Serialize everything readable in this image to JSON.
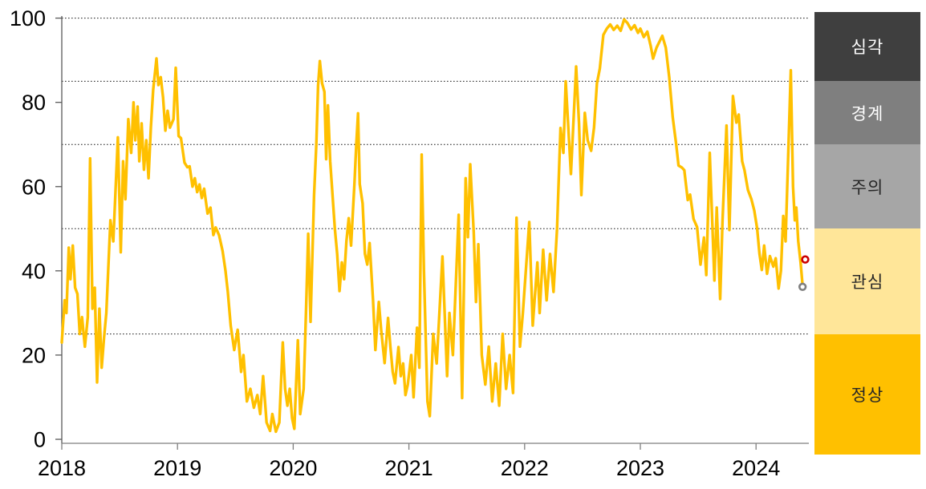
{
  "chart_data": {
    "type": "line",
    "title": "",
    "grid": "horizontal-dotted",
    "gridline_values": [
      100,
      85,
      70,
      50,
      25
    ],
    "x_axis": {
      "ticks": [
        "2018",
        "2019",
        "2020",
        "2021",
        "2022",
        "2023",
        "2024"
      ],
      "tick_values": [
        2018,
        2019,
        2020,
        2021,
        2022,
        2023,
        2024
      ],
      "range": [
        2018.0,
        2024.46
      ]
    },
    "y_axis": {
      "ticks": [
        "0",
        "20",
        "40",
        "60",
        "80",
        "100"
      ],
      "tick_values": [
        0,
        20,
        40,
        60,
        80,
        100
      ],
      "range": [
        0,
        100
      ]
    },
    "series": [
      {
        "color": "#FFC000",
        "points": [
          [
            2018.0,
            23
          ],
          [
            2018.01,
            27
          ],
          [
            2018.025,
            33
          ],
          [
            2018.04,
            30
          ],
          [
            2018.06,
            45.5
          ],
          [
            2018.075,
            38
          ],
          [
            2018.095,
            46
          ],
          [
            2018.115,
            36
          ],
          [
            2018.135,
            34.5
          ],
          [
            2018.155,
            25
          ],
          [
            2018.175,
            29
          ],
          [
            2018.2,
            22
          ],
          [
            2018.225,
            29
          ],
          [
            2018.245,
            66.7
          ],
          [
            2018.265,
            31
          ],
          [
            2018.285,
            36
          ],
          [
            2018.305,
            13.5
          ],
          [
            2018.325,
            31
          ],
          [
            2018.345,
            17
          ],
          [
            2018.365,
            24
          ],
          [
            2018.385,
            30
          ],
          [
            2018.42,
            52
          ],
          [
            2018.445,
            47
          ],
          [
            2018.485,
            71.7
          ],
          [
            2018.51,
            44.4
          ],
          [
            2018.53,
            66
          ],
          [
            2018.55,
            57
          ],
          [
            2018.575,
            76
          ],
          [
            2018.6,
            68
          ],
          [
            2018.62,
            80
          ],
          [
            2018.635,
            71
          ],
          [
            2018.655,
            79
          ],
          [
            2018.67,
            66
          ],
          [
            2018.69,
            75
          ],
          [
            2018.71,
            64
          ],
          [
            2018.73,
            71
          ],
          [
            2018.75,
            62
          ],
          [
            2018.77,
            74
          ],
          [
            2018.79,
            83
          ],
          [
            2018.818,
            90.4
          ],
          [
            2018.835,
            84.1
          ],
          [
            2018.855,
            86
          ],
          [
            2018.875,
            81.2
          ],
          [
            2018.895,
            73.3
          ],
          [
            2018.915,
            78
          ],
          [
            2018.935,
            74
          ],
          [
            2018.965,
            76
          ],
          [
            2018.985,
            88.2
          ],
          [
            2019.01,
            72
          ],
          [
            2019.03,
            71.5
          ],
          [
            2019.06,
            65.7
          ],
          [
            2019.085,
            64.6
          ],
          [
            2019.105,
            64.8
          ],
          [
            2019.13,
            60
          ],
          [
            2019.15,
            62
          ],
          [
            2019.17,
            58.7
          ],
          [
            2019.19,
            60.5
          ],
          [
            2019.21,
            57.3
          ],
          [
            2019.23,
            59.5
          ],
          [
            2019.26,
            53.6
          ],
          [
            2019.285,
            55
          ],
          [
            2019.31,
            48.5
          ],
          [
            2019.33,
            50.3
          ],
          [
            2019.36,
            48.4
          ],
          [
            2019.39,
            44.7
          ],
          [
            2019.415,
            40
          ],
          [
            2019.435,
            35
          ],
          [
            2019.46,
            27
          ],
          [
            2019.49,
            21.2
          ],
          [
            2019.52,
            26
          ],
          [
            2019.55,
            16
          ],
          [
            2019.57,
            20
          ],
          [
            2019.6,
            9
          ],
          [
            2019.63,
            12
          ],
          [
            2019.66,
            7.5
          ],
          [
            2019.69,
            10.5
          ],
          [
            2019.715,
            6
          ],
          [
            2019.74,
            15
          ],
          [
            2019.77,
            4
          ],
          [
            2019.8,
            2
          ],
          [
            2019.82,
            6
          ],
          [
            2019.85,
            1.8
          ],
          [
            2019.88,
            4
          ],
          [
            2019.91,
            23
          ],
          [
            2019.93,
            12
          ],
          [
            2019.95,
            8
          ],
          [
            2019.97,
            12
          ],
          [
            2019.99,
            5
          ],
          [
            2020.01,
            2.5
          ],
          [
            2020.04,
            23.5
          ],
          [
            2020.06,
            6
          ],
          [
            2020.09,
            12
          ],
          [
            2020.11,
            30
          ],
          [
            2020.13,
            48.8
          ],
          [
            2020.15,
            27.9
          ],
          [
            2020.18,
            58
          ],
          [
            2020.2,
            70
          ],
          [
            2020.215,
            84
          ],
          [
            2020.23,
            89.8
          ],
          [
            2020.25,
            84.5
          ],
          [
            2020.27,
            82.5
          ],
          [
            2020.285,
            66.5
          ],
          [
            2020.3,
            79.3
          ],
          [
            2020.32,
            66
          ],
          [
            2020.34,
            58
          ],
          [
            2020.36,
            50
          ],
          [
            2020.38,
            44
          ],
          [
            2020.4,
            35.2
          ],
          [
            2020.42,
            42
          ],
          [
            2020.44,
            38
          ],
          [
            2020.46,
            47
          ],
          [
            2020.48,
            52.5
          ],
          [
            2020.5,
            46
          ],
          [
            2020.53,
            61
          ],
          [
            2020.545,
            70
          ],
          [
            2020.56,
            77.4
          ],
          [
            2020.575,
            60.6
          ],
          [
            2020.6,
            56
          ],
          [
            2020.62,
            44
          ],
          [
            2020.64,
            41.5
          ],
          [
            2020.66,
            46.6
          ],
          [
            2020.69,
            33
          ],
          [
            2020.71,
            21.2
          ],
          [
            2020.74,
            32.6
          ],
          [
            2020.76,
            26
          ],
          [
            2020.79,
            18.1
          ],
          [
            2020.82,
            28.8
          ],
          [
            2020.84,
            22
          ],
          [
            2020.86,
            16
          ],
          [
            2020.88,
            13.3
          ],
          [
            2020.91,
            21.9
          ],
          [
            2020.93,
            15
          ],
          [
            2020.95,
            18
          ],
          [
            2020.97,
            10.5
          ],
          [
            2020.99,
            13
          ],
          [
            2021.02,
            20
          ],
          [
            2021.04,
            10
          ],
          [
            2021.07,
            26.5
          ],
          [
            2021.09,
            17
          ],
          [
            2021.11,
            67.6
          ],
          [
            2021.13,
            40
          ],
          [
            2021.16,
            9
          ],
          [
            2021.18,
            5.5
          ],
          [
            2021.21,
            25
          ],
          [
            2021.24,
            18
          ],
          [
            2021.29,
            43.4
          ],
          [
            2021.33,
            15
          ],
          [
            2021.35,
            30
          ],
          [
            2021.38,
            20
          ],
          [
            2021.43,
            53.3
          ],
          [
            2021.46,
            9.8
          ],
          [
            2021.49,
            62
          ],
          [
            2021.51,
            48
          ],
          [
            2021.53,
            65.3
          ],
          [
            2021.56,
            49
          ],
          [
            2021.58,
            32.6
          ],
          [
            2021.6,
            46.3
          ],
          [
            2021.63,
            20
          ],
          [
            2021.66,
            13
          ],
          [
            2021.69,
            22
          ],
          [
            2021.72,
            9
          ],
          [
            2021.75,
            18
          ],
          [
            2021.78,
            8
          ],
          [
            2021.81,
            25
          ],
          [
            2021.84,
            12
          ],
          [
            2021.87,
            20
          ],
          [
            2021.9,
            11
          ],
          [
            2021.93,
            52.6
          ],
          [
            2021.96,
            22
          ],
          [
            2021.985,
            30
          ],
          [
            2022.04,
            51.6
          ],
          [
            2022.07,
            27
          ],
          [
            2022.11,
            42
          ],
          [
            2022.13,
            30
          ],
          [
            2022.16,
            45
          ],
          [
            2022.19,
            33
          ],
          [
            2022.22,
            44
          ],
          [
            2022.25,
            35
          ],
          [
            2022.28,
            50
          ],
          [
            2022.31,
            73.9
          ],
          [
            2022.335,
            68
          ],
          [
            2022.355,
            85
          ],
          [
            2022.4,
            63
          ],
          [
            2022.445,
            88.5
          ],
          [
            2022.47,
            75
          ],
          [
            2022.49,
            58
          ],
          [
            2022.52,
            77.5
          ],
          [
            2022.545,
            71
          ],
          [
            2022.575,
            68.5
          ],
          [
            2022.6,
            74
          ],
          [
            2022.625,
            84.5
          ],
          [
            2022.65,
            88
          ],
          [
            2022.68,
            96
          ],
          [
            2022.71,
            97.5
          ],
          [
            2022.74,
            98.5
          ],
          [
            2022.77,
            97.2
          ],
          [
            2022.8,
            98.2
          ],
          [
            2022.83,
            97
          ],
          [
            2022.86,
            99.7
          ],
          [
            2022.89,
            98.8
          ],
          [
            2022.92,
            97.3
          ],
          [
            2022.95,
            98.3
          ],
          [
            2022.98,
            96.5
          ],
          [
            2023.0,
            97.5
          ],
          [
            2023.03,
            95.5
          ],
          [
            2023.06,
            96.8
          ],
          [
            2023.09,
            93.3
          ],
          [
            2023.11,
            90.4
          ],
          [
            2023.14,
            93
          ],
          [
            2023.19,
            95.8
          ],
          [
            2023.22,
            93
          ],
          [
            2023.25,
            86
          ],
          [
            2023.28,
            76.4
          ],
          [
            2023.31,
            70
          ],
          [
            2023.33,
            65
          ],
          [
            2023.36,
            64.5
          ],
          [
            2023.38,
            63.9
          ],
          [
            2023.41,
            56.8
          ],
          [
            2023.43,
            58.1
          ],
          [
            2023.46,
            52.3
          ],
          [
            2023.49,
            50.4
          ],
          [
            2023.52,
            41.5
          ],
          [
            2023.55,
            47.9
          ],
          [
            2023.57,
            39
          ],
          [
            2023.6,
            68
          ],
          [
            2023.64,
            37.7
          ],
          [
            2023.66,
            55
          ],
          [
            2023.69,
            33.3
          ],
          [
            2023.71,
            51.8
          ],
          [
            2023.745,
            74.5
          ],
          [
            2023.77,
            49.7
          ],
          [
            2023.8,
            81.5
          ],
          [
            2023.83,
            75.2
          ],
          [
            2023.85,
            77.1
          ],
          [
            2023.88,
            66
          ],
          [
            2023.9,
            63.9
          ],
          [
            2023.93,
            59.2
          ],
          [
            2023.96,
            57
          ],
          [
            2023.985,
            54.3
          ],
          [
            2024.01,
            50
          ],
          [
            2024.03,
            44
          ],
          [
            2024.05,
            40.2
          ],
          [
            2024.07,
            46
          ],
          [
            2024.095,
            39.3
          ],
          [
            2024.12,
            43.5
          ],
          [
            2024.15,
            41
          ],
          [
            2024.17,
            43
          ],
          [
            2024.195,
            35.8
          ],
          [
            2024.215,
            40
          ],
          [
            2024.235,
            53
          ],
          [
            2024.255,
            47
          ],
          [
            2024.3,
            87.6
          ],
          [
            2024.32,
            60
          ],
          [
            2024.335,
            52
          ],
          [
            2024.348,
            55
          ],
          [
            2024.365,
            47
          ],
          [
            2024.385,
            42
          ],
          [
            2024.402,
            36.5
          ]
        ]
      }
    ],
    "markers": [
      {
        "name": "latest-point",
        "shape": "open-circle",
        "color": "#CC0000",
        "x": 2024.425,
        "value": 42.7
      },
      {
        "name": "previous-point",
        "shape": "open-circle",
        "color": "#7F7F7F",
        "x": 2024.402,
        "value": 36.2
      }
    ],
    "legend_position": "right"
  },
  "legend": {
    "bands": [
      {
        "label": "심각",
        "color": "#3F3F3F",
        "text_color": "#FFFFFF",
        "range": [
          85,
          100
        ]
      },
      {
        "label": "경계",
        "color": "#7F7F7F",
        "text_color": "#FFFFFF",
        "range": [
          70,
          85
        ]
      },
      {
        "label": "주의",
        "color": "#A6A6A6",
        "text_color": "#262626",
        "range": [
          50,
          70
        ]
      },
      {
        "label": "관심",
        "color": "#FFE699",
        "text_color": "#262626",
        "range": [
          25,
          50
        ]
      },
      {
        "label": "정상",
        "color": "#FFC000",
        "text_color": "#262626",
        "range": [
          0,
          25
        ]
      }
    ]
  },
  "colors": {
    "line": "#FFC000",
    "gridline": "#1F1F1F",
    "y_axis": "#595959",
    "x_axis": "#7F7F7F",
    "label": "#000000",
    "background": "#FFFFFF"
  }
}
